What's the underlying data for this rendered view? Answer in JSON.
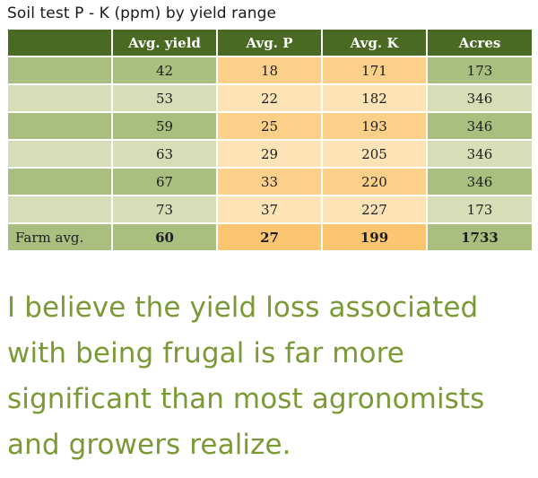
{
  "title": "Soil test P - K (ppm) by yield range",
  "table": {
    "headers": [
      "",
      "Avg. yield",
      "Avg. P",
      "Avg. K",
      "Acres"
    ],
    "rows": [
      [
        "",
        "42",
        "18",
        "171",
        "173"
      ],
      [
        "",
        "53",
        "22",
        "182",
        "346"
      ],
      [
        "",
        "59",
        "25",
        "193",
        "346"
      ],
      [
        "",
        "63",
        "29",
        "205",
        "346"
      ],
      [
        "",
        "67",
        "33",
        "220",
        "346"
      ],
      [
        "",
        "73",
        "37",
        "227",
        "173"
      ]
    ],
    "footer": [
      "Farm avg.",
      "60",
      "27",
      "199",
      "1733"
    ]
  },
  "quote_lines": [
    "I believe the yield loss associated",
    "with being frugal is far more",
    "significant than most agronomists",
    "and growers realize."
  ],
  "colors": {
    "header_bg": "#4a6a23",
    "green_dark": "#a9bf7f",
    "green_light": "#d5deb6",
    "orange_dark": "#fcd089",
    "orange_light": "#fde3b5",
    "quote_text": "#7a9a35"
  }
}
